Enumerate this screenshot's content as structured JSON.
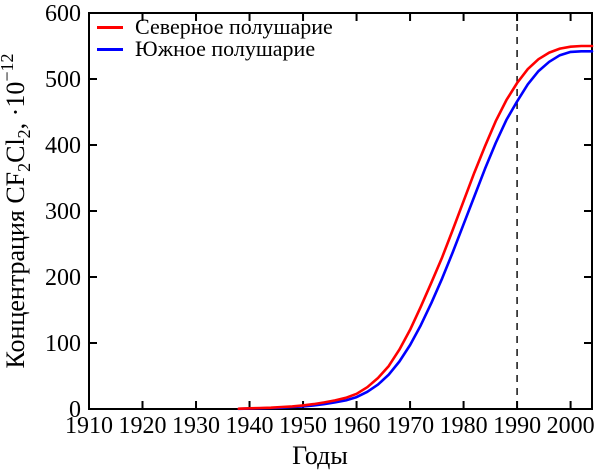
{
  "figure": {
    "background_color": "#ffffff",
    "axis_color": "#000000",
    "text_color": "#000000"
  },
  "chart_data": {
    "type": "line",
    "title": "",
    "xlabel": "Годы",
    "ylabel": "Концентрация CF2Cl2, ·10^-12",
    "ylabel_parts": [
      {
        "text": "Концентрация CF",
        "style": "normal"
      },
      {
        "text": "2",
        "style": "sub"
      },
      {
        "text": "Cl",
        "style": "normal"
      },
      {
        "text": "2",
        "style": "sub"
      },
      {
        "text": ", ·10",
        "style": "normal"
      },
      {
        "text": "−12",
        "style": "sup"
      }
    ],
    "x_range": [
      1910,
      2004
    ],
    "y_range": [
      0,
      600
    ],
    "xticks": [
      1910,
      1920,
      1930,
      1940,
      1950,
      1960,
      1970,
      1980,
      1990,
      2000
    ],
    "yticks": [
      0,
      100,
      200,
      300,
      400,
      500,
      600
    ],
    "grid": false,
    "legend_position": "top-left",
    "x": [
      1938,
      1940,
      1942,
      1944,
      1946,
      1948,
      1950,
      1952,
      1954,
      1956,
      1958,
      1960,
      1962,
      1964,
      1966,
      1968,
      1970,
      1972,
      1974,
      1976,
      1978,
      1980,
      1982,
      1984,
      1986,
      1988,
      1990,
      1992,
      1994,
      1996,
      1998,
      2000,
      2002,
      2004
    ],
    "series": [
      {
        "name": "Южное полушарие",
        "color": "#0000ff",
        "values": [
          0.3,
          0.6,
          1,
          1.5,
          2,
          3,
          4,
          5.5,
          7.5,
          10,
          13,
          18,
          26,
          37,
          52,
          72,
          97,
          127,
          161,
          198,
          238,
          280,
          322,
          364,
          403,
          438,
          466,
          492,
          512,
          526,
          536,
          541,
          542,
          542
        ]
      },
      {
        "name": "Северное полушарие",
        "color": "#ff0000",
        "values": [
          0.5,
          1,
          1.5,
          2,
          3,
          4,
          5.5,
          7.5,
          10,
          13,
          17,
          23,
          33,
          47,
          65,
          90,
          120,
          155,
          192,
          230,
          272,
          315,
          358,
          398,
          436,
          468,
          494,
          515,
          530,
          540,
          546,
          549,
          550,
          550
        ]
      }
    ],
    "legend_order": [
      1,
      0
    ],
    "annotations": [
      {
        "type": "vline",
        "x": 1990,
        "style": "dashed",
        "color": "#000000"
      }
    ]
  }
}
